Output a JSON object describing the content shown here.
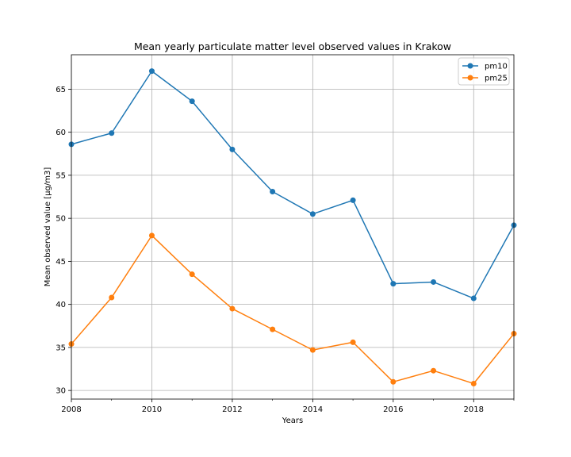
{
  "chart_data": {
    "type": "line",
    "title": "Mean yearly particulate matter level observed values in Krakow",
    "xlabel": "Years",
    "ylabel": "Mean observed value [µg/m3]",
    "x": [
      2008,
      2009,
      2010,
      2011,
      2012,
      2013,
      2014,
      2015,
      2016,
      2017,
      2018,
      2019
    ],
    "xlim": [
      2008,
      2019
    ],
    "ylim": [
      29.0,
      69.0
    ],
    "xticks": [
      "2008",
      "2010",
      "2012",
      "2014",
      "2016",
      "2018"
    ],
    "yticks": [
      "30",
      "35",
      "40",
      "45",
      "50",
      "55",
      "60",
      "65"
    ],
    "grid": true,
    "legend_position": "top-right",
    "series": [
      {
        "name": "pm10",
        "color": "#1f77b4",
        "values": [
          58.6,
          59.9,
          67.1,
          63.6,
          58.0,
          53.1,
          50.5,
          52.1,
          42.4,
          42.6,
          40.7,
          49.2
        ]
      },
      {
        "name": "pm25",
        "color": "#ff7f0e",
        "values": [
          35.4,
          40.8,
          48.0,
          43.5,
          39.5,
          37.1,
          34.7,
          35.6,
          31.0,
          32.3,
          30.8,
          36.6
        ]
      }
    ]
  }
}
